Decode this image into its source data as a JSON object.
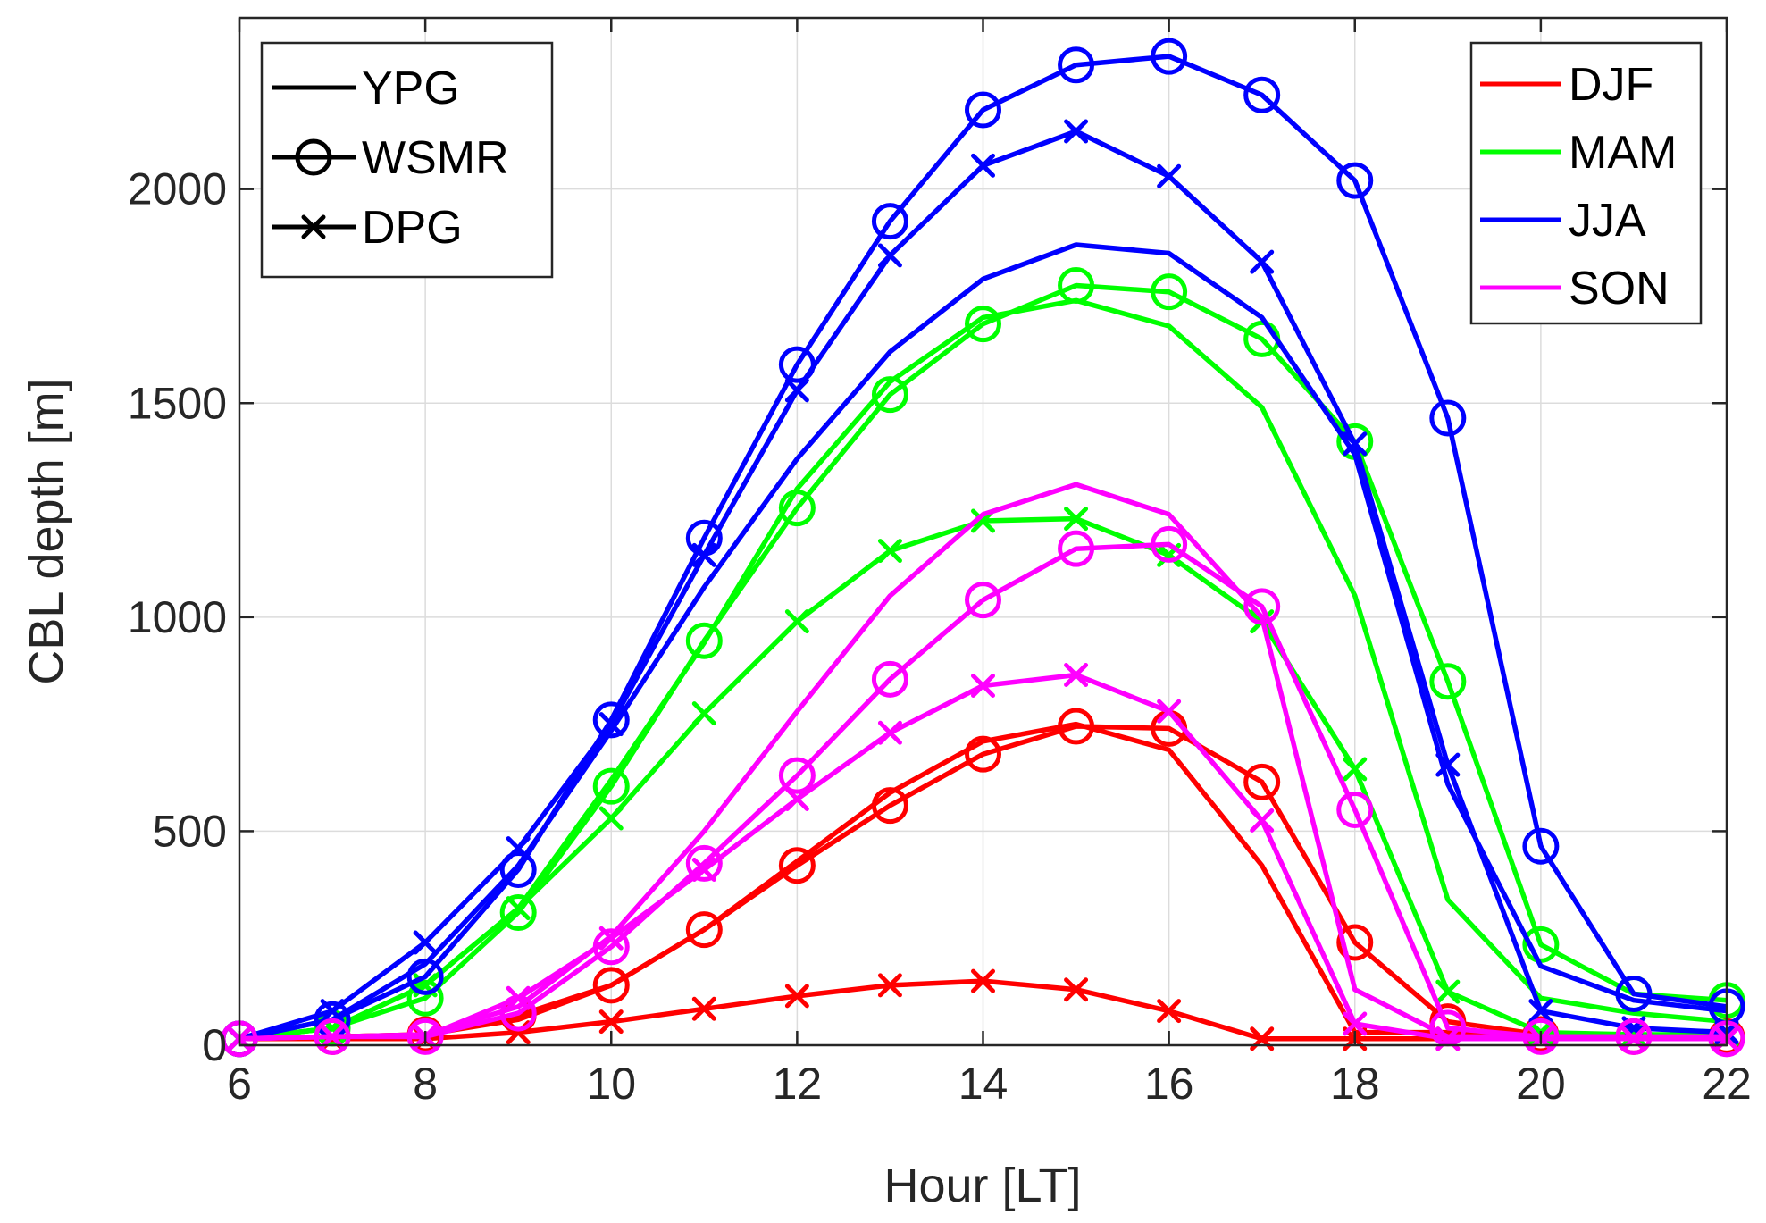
{
  "chart_data": {
    "type": "line",
    "xlabel": "Hour [LT]",
    "ylabel": "CBL depth [m]",
    "xlim": [
      6,
      22
    ],
    "ylim": [
      0,
      2400
    ],
    "xticks": [
      6,
      8,
      10,
      12,
      14,
      16,
      18,
      20,
      22
    ],
    "yticks": [
      0,
      500,
      1000,
      1500,
      2000
    ],
    "grid": true,
    "x": [
      6,
      7,
      8,
      9,
      10,
      11,
      12,
      13,
      14,
      15,
      16,
      17,
      18,
      19,
      20,
      21,
      22
    ],
    "legend_sites": {
      "placement": "top-left",
      "entries": [
        {
          "name": "YPG",
          "marker": "none"
        },
        {
          "name": "WSMR",
          "marker": "circle"
        },
        {
          "name": "DPG",
          "marker": "x"
        }
      ]
    },
    "legend_seasons": {
      "placement": "top-right",
      "entries": [
        {
          "name": "DJF",
          "color": "#ff0000"
        },
        {
          "name": "MAM",
          "color": "#00ff00"
        },
        {
          "name": "JJA",
          "color": "#0000ff"
        },
        {
          "name": "SON",
          "color": "#ff00ff"
        }
      ]
    },
    "series": [
      {
        "name": "DJF YPG",
        "season": "DJF",
        "site": "YPG",
        "color": "#ff0000",
        "marker": "none",
        "values": [
          15,
          20,
          25,
          60,
          140,
          270,
          430,
          590,
          710,
          750,
          690,
          420,
          30,
          30,
          25,
          25,
          20
        ]
      },
      {
        "name": "DJF WSMR",
        "season": "DJF",
        "site": "WSMR",
        "color": "#ff0000",
        "marker": "circle",
        "values": [
          15,
          20,
          25,
          70,
          140,
          270,
          420,
          560,
          680,
          745,
          740,
          615,
          240,
          55,
          25,
          20,
          20
        ]
      },
      {
        "name": "DJF DPG",
        "season": "DJF",
        "site": "DPG",
        "color": "#ff0000",
        "marker": "x",
        "values": [
          15,
          15,
          15,
          30,
          55,
          85,
          115,
          140,
          150,
          130,
          80,
          15,
          15,
          15,
          15,
          15,
          15
        ]
      },
      {
        "name": "MAM YPG",
        "season": "MAM",
        "site": "YPG",
        "color": "#00ff00",
        "marker": "none",
        "values": [
          15,
          40,
          140,
          320,
          620,
          940,
          1300,
          1550,
          1700,
          1740,
          1680,
          1490,
          1050,
          340,
          110,
          75,
          55
        ]
      },
      {
        "name": "MAM WSMR",
        "season": "MAM",
        "site": "WSMR",
        "color": "#00ff00",
        "marker": "circle",
        "values": [
          15,
          40,
          110,
          310,
          605,
          945,
          1255,
          1520,
          1685,
          1775,
          1760,
          1650,
          1410,
          850,
          235,
          120,
          105
        ]
      },
      {
        "name": "MAM DPG",
        "season": "MAM",
        "site": "DPG",
        "color": "#00ff00",
        "marker": "x",
        "values": [
          15,
          40,
          140,
          320,
          530,
          775,
          990,
          1155,
          1225,
          1230,
          1145,
          990,
          645,
          125,
          30,
          25,
          25
        ]
      },
      {
        "name": "JJA YPG",
        "season": "JJA",
        "site": "YPG",
        "color": "#0000ff",
        "marker": "none",
        "values": [
          15,
          60,
          190,
          420,
          735,
          1070,
          1370,
          1620,
          1790,
          1870,
          1850,
          1700,
          1380,
          610,
          185,
          105,
          80
        ]
      },
      {
        "name": "JJA WSMR",
        "season": "JJA",
        "site": "WSMR",
        "color": "#0000ff",
        "marker": "circle",
        "values": [
          15,
          60,
          160,
          410,
          760,
          1185,
          1590,
          1925,
          2185,
          2290,
          2310,
          2220,
          2020,
          1465,
          465,
          120,
          90
        ]
      },
      {
        "name": "JJA DPG",
        "season": "JJA",
        "site": "DPG",
        "color": "#0000ff",
        "marker": "x",
        "values": [
          15,
          80,
          240,
          460,
          750,
          1145,
          1530,
          1845,
          2055,
          2135,
          2030,
          1830,
          1405,
          655,
          80,
          40,
          30
        ]
      },
      {
        "name": "SON YPG",
        "season": "SON",
        "site": "YPG",
        "color": "#ff00ff",
        "marker": "none",
        "values": [
          15,
          20,
          25,
          90,
          255,
          500,
          780,
          1050,
          1240,
          1310,
          1240,
          1000,
          130,
          20,
          20,
          20,
          20
        ]
      },
      {
        "name": "SON WSMR",
        "season": "SON",
        "site": "WSMR",
        "color": "#ff00ff",
        "marker": "circle",
        "values": [
          15,
          20,
          20,
          75,
          230,
          425,
          630,
          855,
          1040,
          1160,
          1170,
          1025,
          550,
          40,
          20,
          20,
          15
        ]
      },
      {
        "name": "SON DPG",
        "season": "SON",
        "site": "DPG",
        "color": "#ff00ff",
        "marker": "x",
        "values": [
          15,
          20,
          20,
          110,
          250,
          410,
          575,
          730,
          840,
          865,
          780,
          525,
          50,
          15,
          15,
          15,
          15
        ]
      }
    ]
  }
}
